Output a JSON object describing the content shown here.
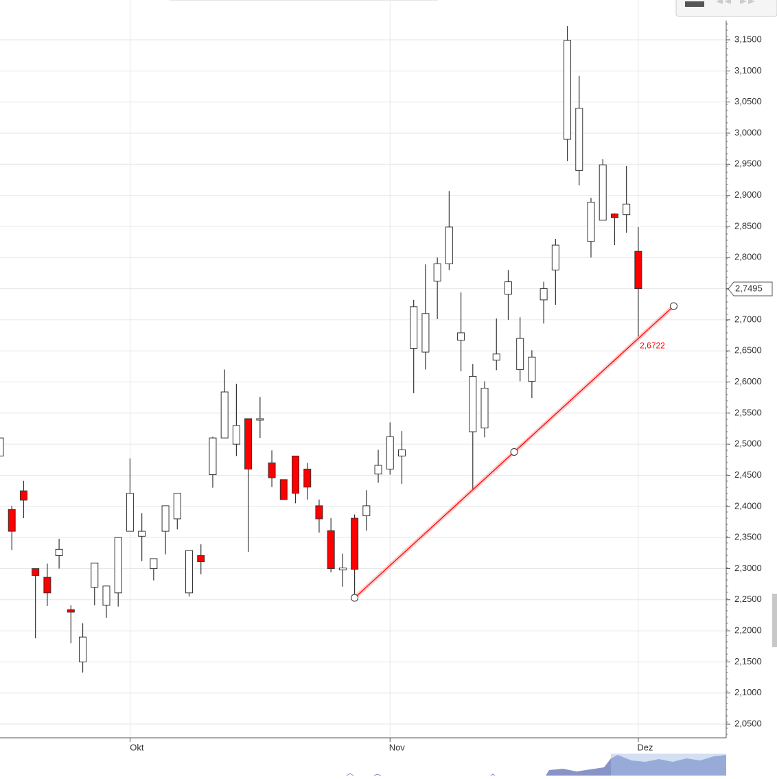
{
  "chart_data": {
    "type": "candlestick",
    "categories": [
      null,
      null,
      null,
      null,
      null,
      null,
      null,
      null,
      null,
      null,
      null,
      "Okt",
      null,
      null,
      null,
      null,
      null,
      null,
      null,
      null,
      null,
      null,
      null,
      null,
      null,
      null,
      null,
      null,
      null,
      null,
      null,
      null,
      null,
      "Nov",
      null,
      null,
      null,
      null,
      null,
      null,
      null,
      null,
      null,
      null,
      null,
      null,
      null,
      null,
      null,
      null,
      null,
      null,
      null,
      null,
      "Dez"
    ],
    "open": [
      2.481,
      2.395,
      2.425,
      2.3,
      2.286,
      2.321,
      2.234,
      2.15,
      2.27,
      2.241,
      2.261,
      2.36,
      2.352,
      2.3,
      2.36,
      2.38,
      2.261,
      2.321,
      2.451,
      2.51,
      2.5,
      2.541,
      2.539,
      2.47,
      2.443,
      2.481,
      2.46,
      2.401,
      2.361,
      2.298,
      2.381,
      2.385,
      2.452,
      2.46,
      2.481,
      2.654,
      2.648,
      2.762,
      2.79,
      2.667,
      2.52,
      2.526,
      2.635,
      2.741,
      2.62,
      2.601,
      2.732,
      2.78,
      2.99,
      2.94,
      2.826,
      2.86,
      2.87,
      2.869,
      2.81
    ],
    "high": [
      2.51,
      2.401,
      2.441,
      2.3,
      2.308,
      2.348,
      2.241,
      2.212,
      2.309,
      2.272,
      2.35,
      2.477,
      2.389,
      2.316,
      2.401,
      2.421,
      2.329,
      2.339,
      2.512,
      2.62,
      2.597,
      2.541,
      2.576,
      2.49,
      2.443,
      2.481,
      2.47,
      2.411,
      2.381,
      2.324,
      2.387,
      2.426,
      2.491,
      2.535,
      2.521,
      2.732,
      2.789,
      2.8,
      2.907,
      2.744,
      2.629,
      2.601,
      2.702,
      2.78,
      2.704,
      2.651,
      2.761,
      2.83,
      3.172,
      3.092,
      2.896,
      2.958,
      2.871,
      2.947,
      2.849
    ],
    "low": [
      2.481,
      2.33,
      2.381,
      2.188,
      2.24,
      2.3,
      2.18,
      2.133,
      2.241,
      2.221,
      2.239,
      2.36,
      2.312,
      2.281,
      2.323,
      2.363,
      2.255,
      2.291,
      2.43,
      2.51,
      2.481,
      2.327,
      2.51,
      2.431,
      2.411,
      2.405,
      2.411,
      2.358,
      2.294,
      2.271,
      2.253,
      2.361,
      2.438,
      2.451,
      2.436,
      2.582,
      2.62,
      2.701,
      2.78,
      2.617,
      2.428,
      2.511,
      2.619,
      2.7,
      2.601,
      2.574,
      2.694,
      2.724,
      2.955,
      2.916,
      2.8,
      2.86,
      2.82,
      2.84,
      2.673
    ],
    "close": [
      2.51,
      2.36,
      2.41,
      2.289,
      2.261,
      2.331,
      2.23,
      2.19,
      2.309,
      2.272,
      2.35,
      2.421,
      2.36,
      2.316,
      2.401,
      2.421,
      2.329,
      2.311,
      2.51,
      2.584,
      2.53,
      2.46,
      2.541,
      2.446,
      2.411,
      2.421,
      2.431,
      2.38,
      2.3,
      2.301,
      2.299,
      2.401,
      2.466,
      2.512,
      2.491,
      2.721,
      2.71,
      2.79,
      2.849,
      2.679,
      2.609,
      2.59,
      2.645,
      2.761,
      2.67,
      2.64,
      2.75,
      2.82,
      3.149,
      3.04,
      2.889,
      2.949,
      2.864,
      2.886,
      2.75
    ],
    "up_color": "#ffffff",
    "down_color": "#ff0000",
    "ylim": [
      2.028,
      3.214
    ],
    "yticks": [
      {
        "value": 2.05,
        "label": "2,0500"
      },
      {
        "value": 2.1,
        "label": "2,1000"
      },
      {
        "value": 2.15,
        "label": "2,1500"
      },
      {
        "value": 2.2,
        "label": "2,2000"
      },
      {
        "value": 2.25,
        "label": "2,2500"
      },
      {
        "value": 2.3,
        "label": "2,3000"
      },
      {
        "value": 2.35,
        "label": "2,3500"
      },
      {
        "value": 2.4,
        "label": "2,4000"
      },
      {
        "value": 2.45,
        "label": "2,4500"
      },
      {
        "value": 2.5,
        "label": "2,5000"
      },
      {
        "value": 2.55,
        "label": "2,5500"
      },
      {
        "value": 2.6,
        "label": "2,6000"
      },
      {
        "value": 2.65,
        "label": "2,6500"
      },
      {
        "value": 2.7,
        "label": "2,7000"
      },
      {
        "value": 2.75,
        "label": "2,7500"
      },
      {
        "value": 2.8,
        "label": "2,8000"
      },
      {
        "value": 2.85,
        "label": "2,8500"
      },
      {
        "value": 2.9,
        "label": "2,9000"
      },
      {
        "value": 2.95,
        "label": "2,9500"
      },
      {
        "value": 3.0,
        "label": "3,0000"
      },
      {
        "value": 3.05,
        "label": "3,0500"
      },
      {
        "value": 3.1,
        "label": "3,1000"
      },
      {
        "value": 3.15,
        "label": "3,1500"
      }
    ],
    "grid": true,
    "last_price": {
      "value": 2.7495,
      "label": "2,7495"
    },
    "trendline": {
      "x": [
        30,
        57
      ],
      "values": [
        2.253,
        2.722
      ],
      "color": "#ff0000",
      "label": {
        "value": 2.6722,
        "label": "2,6722"
      }
    }
  }
}
